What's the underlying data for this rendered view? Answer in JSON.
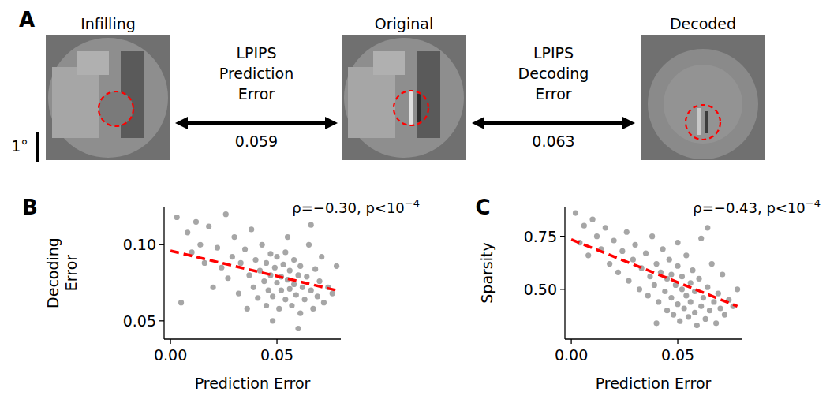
{
  "panel_a": {
    "letter": "A",
    "images": [
      {
        "title": "Infilling"
      },
      {
        "title": "Original"
      },
      {
        "title": "Decoded"
      }
    ],
    "comparisons": [
      {
        "label_lines": [
          "LPIPS",
          "Prediction",
          "Error"
        ],
        "value": 0.059
      },
      {
        "label_lines": [
          "LPIPS",
          "Decoding",
          "Error"
        ],
        "value": 0.063
      }
    ],
    "scale_bar": "1°"
  },
  "chart_data": [
    {
      "type": "scatter",
      "letter": "B",
      "x_label": "Prediction Error",
      "y_label": "Decoding Error",
      "annotation": {
        "text": "ρ=−0.30, p<10",
        "superscript": "−4"
      },
      "xlim": [
        -0.003,
        0.08
      ],
      "ylim": [
        0.038,
        0.125
      ],
      "xticks": [
        {
          "value": 0,
          "label": "0.00"
        },
        {
          "value": 0.05,
          "label": "0.05"
        }
      ],
      "yticks": [
        {
          "value": 0.05,
          "label": "0.05"
        },
        {
          "value": 0.1,
          "label": "0.10"
        }
      ],
      "series": [
        {
          "type": "scatter",
          "color": "#000000",
          "marker": "circle",
          "x": [
            0.003,
            0.005,
            0.008,
            0.01,
            0.012,
            0.014,
            0.016,
            0.018,
            0.02,
            0.022,
            0.024,
            0.026,
            0.027,
            0.029,
            0.03,
            0.032,
            0.033,
            0.035,
            0.036,
            0.037,
            0.038,
            0.039,
            0.04,
            0.041,
            0.042,
            0.043,
            0.044,
            0.045,
            0.045,
            0.046,
            0.047,
            0.047,
            0.048,
            0.049,
            0.05,
            0.05,
            0.051,
            0.052,
            0.052,
            0.053,
            0.054,
            0.054,
            0.055,
            0.056,
            0.056,
            0.057,
            0.058,
            0.058,
            0.059,
            0.06,
            0.061,
            0.061,
            0.062,
            0.063,
            0.064,
            0.065,
            0.066,
            0.067,
            0.068,
            0.069,
            0.07,
            0.071,
            0.072,
            0.074,
            0.076,
            0.078,
            0.06,
            0.055,
            0.048,
            0.066
          ],
          "values": [
            0.118,
            0.062,
            0.108,
            0.095,
            0.115,
            0.1,
            0.088,
            0.112,
            0.072,
            0.098,
            0.085,
            0.12,
            0.078,
            0.092,
            0.105,
            0.068,
            0.088,
            0.097,
            0.058,
            0.08,
            0.11,
            0.072,
            0.09,
            0.065,
            0.083,
            0.1,
            0.076,
            0.06,
            0.088,
            0.07,
            0.094,
            0.08,
            0.066,
            0.085,
            0.075,
            0.092,
            0.058,
            0.079,
            0.07,
            0.087,
            0.064,
            0.095,
            0.077,
            0.071,
            0.083,
            0.06,
            0.09,
            0.074,
            0.067,
            0.08,
            0.055,
            0.086,
            0.072,
            0.064,
            0.079,
            0.1,
            0.07,
            0.058,
            0.084,
            0.066,
            0.076,
            0.092,
            0.062,
            0.072,
            0.068,
            0.086,
            0.045,
            0.105,
            0.05,
            0.113
          ]
        },
        {
          "type": "line",
          "color": "#ff0000",
          "line_style": "dashed",
          "x": [
            0,
            0.078
          ],
          "values": [
            0.096,
            0.07
          ]
        }
      ]
    },
    {
      "type": "scatter",
      "letter": "C",
      "x_label": "Prediction Error",
      "y_label": "Sparsity",
      "annotation": {
        "text": "ρ=−0.43, p<10",
        "superscript": "−4"
      },
      "xlim": [
        -0.003,
        0.08
      ],
      "ylim": [
        0.265,
        0.89
      ],
      "xticks": [
        {
          "value": 0,
          "label": "0.00"
        },
        {
          "value": 0.05,
          "label": "0.05"
        }
      ],
      "yticks": [
        {
          "value": 0.5,
          "label": "0.50"
        },
        0.75
      ],
      "series": [
        {
          "type": "scatter",
          "color": "#000000",
          "marker": "circle",
          "x": [
            0.002,
            0.004,
            0.006,
            0.008,
            0.01,
            0.012,
            0.014,
            0.016,
            0.018,
            0.02,
            0.022,
            0.024,
            0.026,
            0.027,
            0.029,
            0.03,
            0.032,
            0.033,
            0.035,
            0.036,
            0.037,
            0.038,
            0.039,
            0.04,
            0.041,
            0.042,
            0.043,
            0.044,
            0.045,
            0.045,
            0.046,
            0.047,
            0.047,
            0.048,
            0.049,
            0.05,
            0.05,
            0.051,
            0.052,
            0.052,
            0.053,
            0.054,
            0.054,
            0.055,
            0.056,
            0.056,
            0.057,
            0.058,
            0.058,
            0.059,
            0.06,
            0.061,
            0.061,
            0.062,
            0.063,
            0.064,
            0.065,
            0.066,
            0.067,
            0.068,
            0.069,
            0.07,
            0.071,
            0.072,
            0.074,
            0.076,
            0.078,
            0.064,
            0.04,
            0.05
          ],
          "values": [
            0.86,
            0.72,
            0.8,
            0.66,
            0.83,
            0.75,
            0.69,
            0.79,
            0.62,
            0.73,
            0.58,
            0.68,
            0.77,
            0.54,
            0.64,
            0.71,
            0.5,
            0.6,
            0.67,
            0.47,
            0.56,
            0.75,
            0.52,
            0.62,
            0.44,
            0.58,
            0.69,
            0.49,
            0.4,
            0.55,
            0.64,
            0.46,
            0.57,
            0.38,
            0.52,
            0.61,
            0.43,
            0.35,
            0.5,
            0.56,
            0.41,
            0.66,
            0.47,
            0.37,
            0.53,
            0.44,
            0.59,
            0.39,
            0.49,
            0.33,
            0.55,
            0.42,
            0.74,
            0.46,
            0.36,
            0.51,
            0.4,
            0.62,
            0.44,
            0.34,
            0.48,
            0.41,
            0.57,
            0.38,
            0.45,
            0.42,
            0.5,
            0.79,
            0.34,
            0.72
          ]
        },
        {
          "type": "line",
          "color": "#ff0000",
          "line_style": "dashed",
          "x": [
            0,
            0.078
          ],
          "values": [
            0.735,
            0.42
          ]
        }
      ]
    }
  ]
}
